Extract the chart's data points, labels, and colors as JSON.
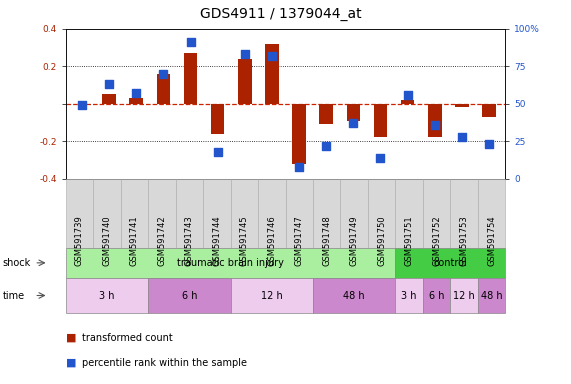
{
  "title": "GDS4911 / 1379044_at",
  "samples": [
    "GSM591739",
    "GSM591740",
    "GSM591741",
    "GSM591742",
    "GSM591743",
    "GSM591744",
    "GSM591745",
    "GSM591746",
    "GSM591747",
    "GSM591748",
    "GSM591749",
    "GSM591750",
    "GSM591751",
    "GSM591752",
    "GSM591753",
    "GSM591754"
  ],
  "transformed_count": [
    0.0,
    0.05,
    0.03,
    0.16,
    0.27,
    -0.16,
    0.24,
    0.32,
    -0.32,
    -0.11,
    -0.09,
    -0.18,
    0.02,
    -0.18,
    -0.02,
    -0.07
  ],
  "percentile_rank_pct": [
    49,
    63,
    57,
    70,
    91,
    18,
    83,
    82,
    8,
    22,
    37,
    14,
    56,
    36,
    28,
    23
  ],
  "ylim_left": [
    -0.4,
    0.4
  ],
  "ylim_right": [
    0,
    100
  ],
  "yticks_left": [
    -0.4,
    -0.2,
    0.0,
    0.2,
    0.4
  ],
  "yticks_right": [
    0,
    25,
    50,
    75,
    100
  ],
  "bar_color": "#aa2200",
  "dot_color": "#2255cc",
  "zero_line_color": "#cc2200",
  "grid_color": "#000000",
  "bg_color": "#ffffff",
  "shock_groups": [
    {
      "label": "traumatic brain injury",
      "start": 0,
      "end": 11,
      "color": "#aaeea0"
    },
    {
      "label": "control",
      "start": 12,
      "end": 15,
      "color": "#44cc44"
    }
  ],
  "time_groups": [
    {
      "label": "3 h",
      "start": 0,
      "end": 2,
      "color": "#eeccee"
    },
    {
      "label": "6 h",
      "start": 3,
      "end": 5,
      "color": "#cc88cc"
    },
    {
      "label": "12 h",
      "start": 6,
      "end": 8,
      "color": "#eeccee"
    },
    {
      "label": "48 h",
      "start": 9,
      "end": 11,
      "color": "#cc88cc"
    },
    {
      "label": "3 h",
      "start": 12,
      "end": 12,
      "color": "#eeccee"
    },
    {
      "label": "6 h",
      "start": 13,
      "end": 13,
      "color": "#cc88cc"
    },
    {
      "label": "12 h",
      "start": 14,
      "end": 14,
      "color": "#eeccee"
    },
    {
      "label": "48 h",
      "start": 15,
      "end": 15,
      "color": "#cc88cc"
    }
  ],
  "legend_bar_label": "transformed count",
  "legend_dot_label": "percentile rank within the sample",
  "title_fontsize": 10,
  "tick_fontsize": 6.5,
  "annot_fontsize": 7,
  "shock_row_label": "shock",
  "time_row_label": "time",
  "sample_box_color": "#d8d8d8",
  "sample_box_edge": "#aaaaaa"
}
